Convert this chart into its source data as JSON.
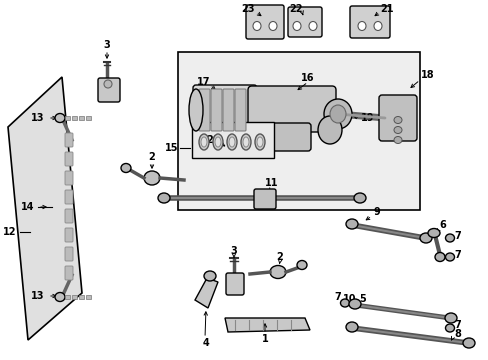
{
  "background_color": "#ffffff",
  "line_color": "#000000",
  "part_color": "#555555",
  "box_fill": "#f0f0f0",
  "fig_width": 4.89,
  "fig_height": 3.6
}
